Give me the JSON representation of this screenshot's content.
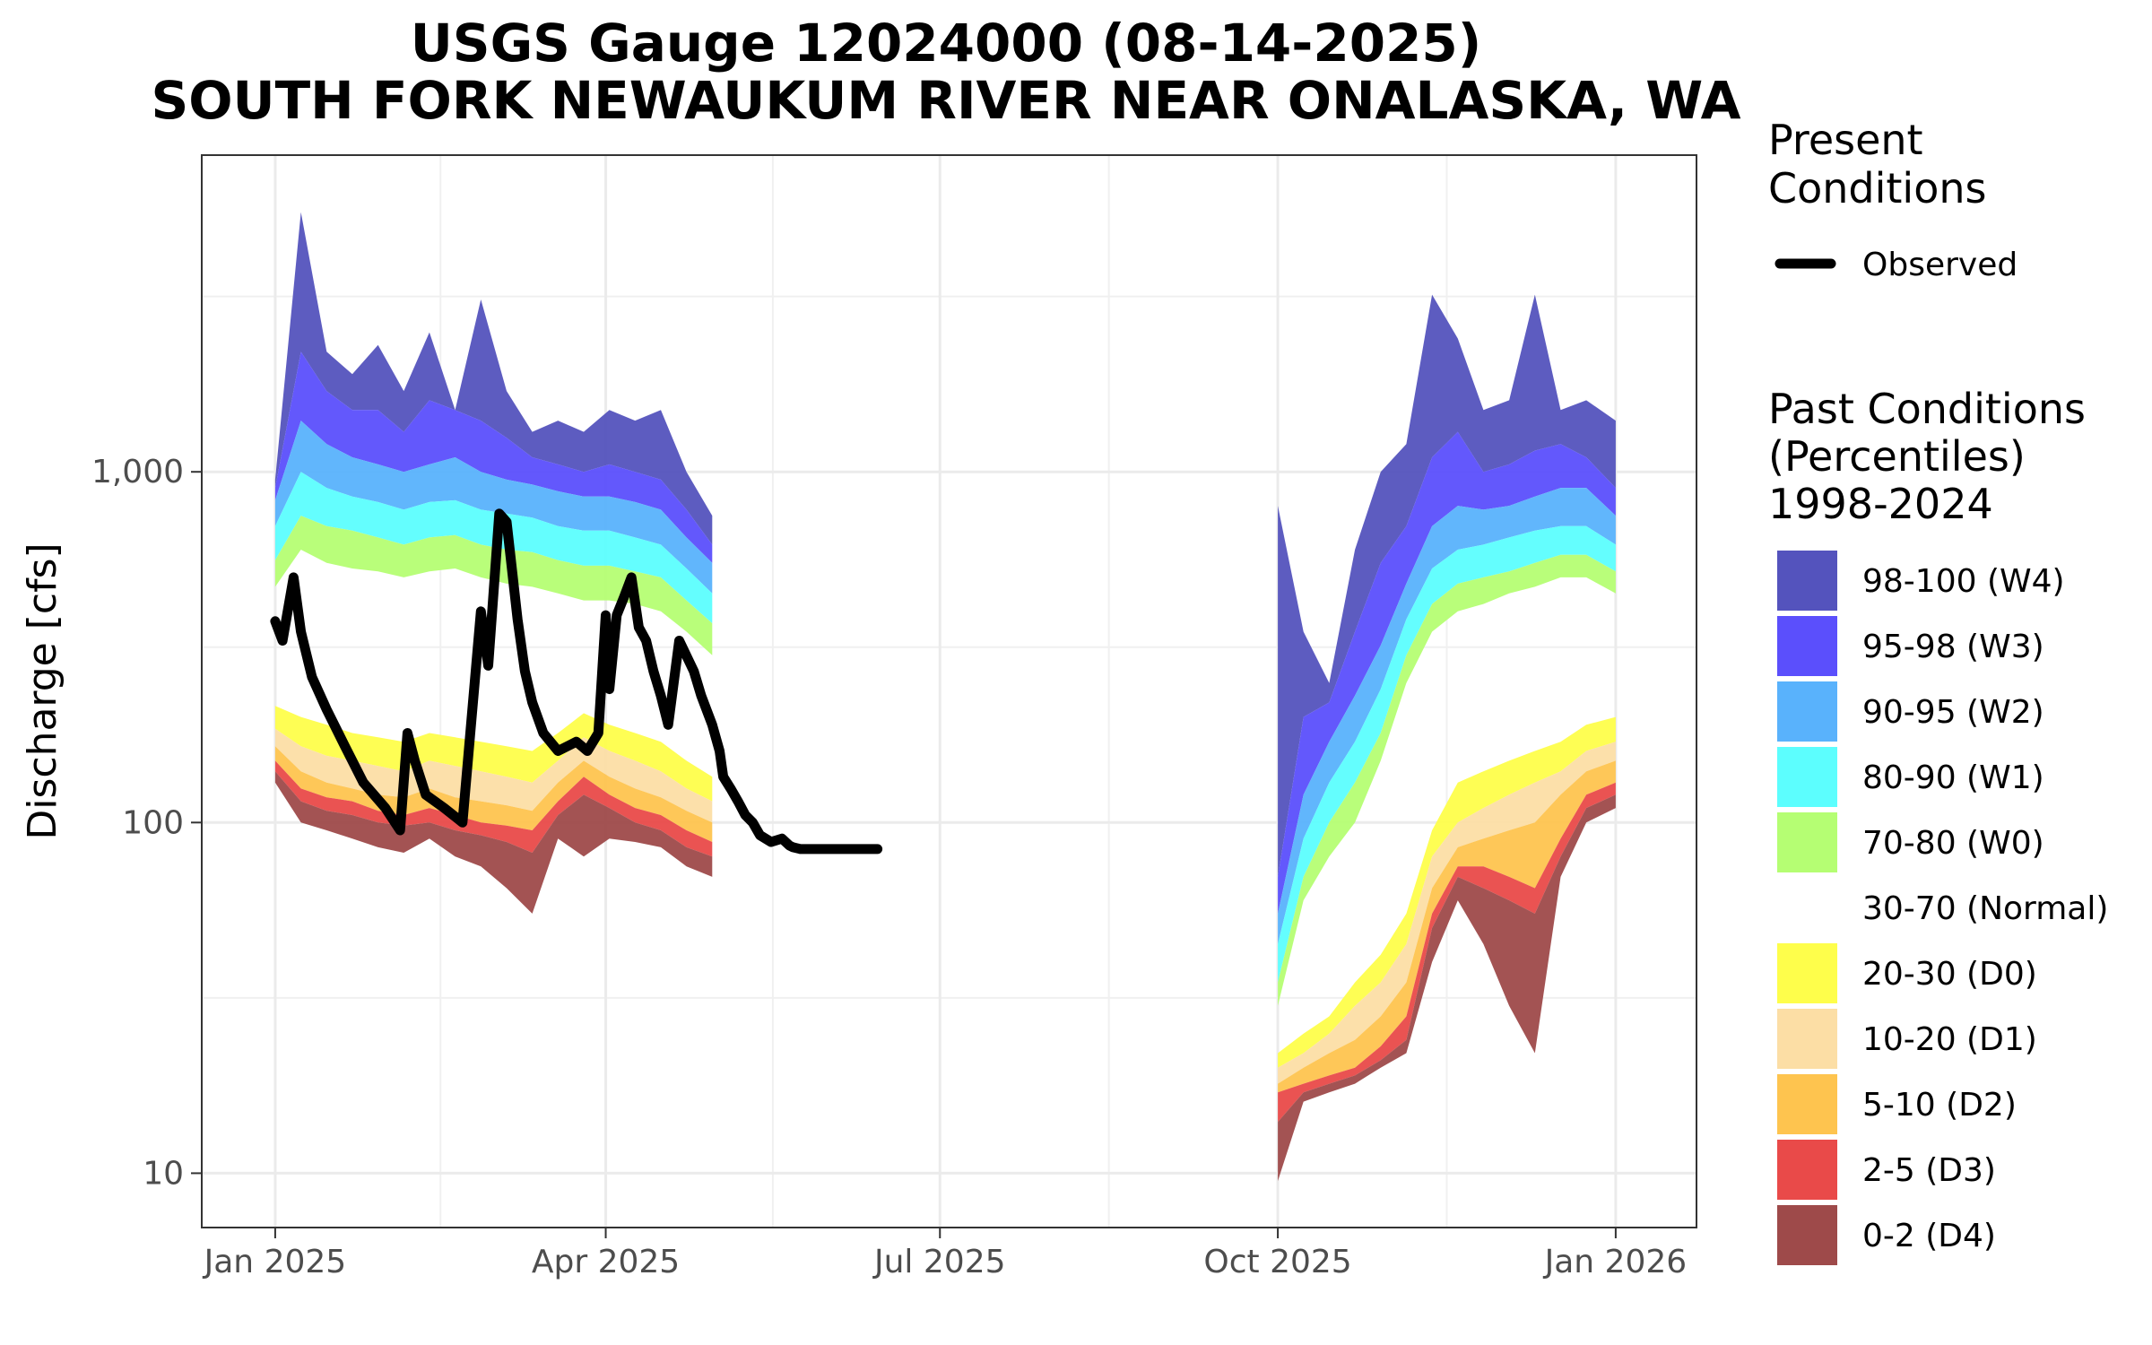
{
  "chart_data": {
    "type": "area",
    "title_lines": [
      "USGS Gauge 12024000 (08-14-2025)",
      "SOUTH FORK NEWAUKUM RIVER NEAR ONALASKA, WA"
    ],
    "xlabel": "",
    "ylabel": "Discharge [cfs]",
    "y_scale": "log",
    "ylim": [
      7,
      8000
    ],
    "xlim": [
      "2024-12-12",
      "2026-01-23"
    ],
    "y_ticks": [
      10,
      100,
      1000
    ],
    "y_tick_labels": [
      "10",
      "100",
      "1,000"
    ],
    "x_ticks": [
      "2025-01-01",
      "2025-04-01",
      "2025-07-01",
      "2025-10-01",
      "2026-01-01"
    ],
    "x_tick_labels": [
      "Jan 2025",
      "Apr 2025",
      "Jul 2025",
      "Oct 2025",
      "Jan 2026"
    ],
    "grid": true,
    "legend_position": "right",
    "present_legend": {
      "title_lines": [
        "Present",
        "Conditions"
      ],
      "entries": [
        {
          "label": "Observed",
          "color": "#000000"
        }
      ]
    },
    "past_legend": {
      "title_lines": [
        "Past Conditions",
        "(Percentiles)",
        "1998-2024"
      ],
      "entries": [
        {
          "label": "98-100 (W4)",
          "color": "#5453BD"
        },
        {
          "label": "95-98 (W3)",
          "color": "#5B4FFC"
        },
        {
          "label": "90-95 (W2)",
          "color": "#59B2FC"
        },
        {
          "label": "80-90 (W1)",
          "color": "#5CFEFE"
        },
        {
          "label": "70-80 (W0)",
          "color": "#B5FE73"
        },
        {
          "label": "30-70 (Normal)",
          "color": "#FFFFFF"
        },
        {
          "label": "20-30 (D0)",
          "color": "#FEFE4B"
        },
        {
          "label": "10-20 (D1)",
          "color": "#FCDEA5"
        },
        {
          "label": "5-10 (D2)",
          "color": "#FEC44F"
        },
        {
          "label": "2-5 (D3)",
          "color": "#E94A49"
        },
        {
          "label": "0-2 (D4)",
          "color": "#9E4A4A"
        }
      ]
    },
    "bands": [
      {
        "segment": "Jan-Apr 2025",
        "x": [
          "2025-01-01",
          "2025-01-08",
          "2025-01-15",
          "2025-01-22",
          "2025-01-29",
          "2025-02-05",
          "2025-02-12",
          "2025-02-19",
          "2025-02-26",
          "2025-03-05",
          "2025-03-12",
          "2025-03-19",
          "2025-03-26",
          "2025-04-02",
          "2025-04-09",
          "2025-04-16",
          "2025-04-23",
          "2025-04-30"
        ],
        "p0": [
          130,
          100,
          95,
          90,
          85,
          82,
          90,
          80,
          75,
          65,
          55,
          90,
          80,
          90,
          88,
          85,
          75,
          70
        ],
        "p2": [
          140,
          115,
          108,
          105,
          100,
          98,
          100,
          95,
          92,
          88,
          82,
          105,
          120,
          110,
          100,
          95,
          85,
          80
        ],
        "p5": [
          150,
          125,
          118,
          115,
          108,
          105,
          110,
          105,
          100,
          98,
          95,
          115,
          135,
          120,
          110,
          105,
          95,
          88
        ],
        "p10": [
          165,
          140,
          130,
          125,
          120,
          118,
          125,
          118,
          115,
          112,
          108,
          130,
          150,
          135,
          125,
          118,
          108,
          100
        ],
        "p20": [
          185,
          165,
          155,
          150,
          145,
          140,
          150,
          145,
          140,
          135,
          130,
          150,
          175,
          160,
          150,
          140,
          125,
          115
        ],
        "p30": [
          215,
          200,
          190,
          180,
          175,
          170,
          180,
          175,
          170,
          165,
          160,
          180,
          205,
          190,
          180,
          170,
          150,
          135
        ],
        "p70": [
          470,
          600,
          550,
          530,
          520,
          500,
          520,
          530,
          500,
          480,
          470,
          450,
          430,
          430,
          420,
          400,
          350,
          300
        ],
        "p80": [
          560,
          750,
          700,
          680,
          650,
          620,
          650,
          660,
          620,
          600,
          590,
          560,
          540,
          540,
          520,
          500,
          430,
          370
        ],
        "p90": [
          700,
          1000,
          900,
          850,
          820,
          780,
          820,
          830,
          780,
          760,
          740,
          700,
          680,
          680,
          650,
          620,
          530,
          450
        ],
        "p95": [
          830,
          1400,
          1200,
          1100,
          1050,
          1000,
          1050,
          1100,
          1000,
          950,
          920,
          880,
          850,
          850,
          820,
          780,
          650,
          550
        ],
        "p98": [
          900,
          2200,
          1700,
          1500,
          1500,
          1300,
          1600,
          1500,
          1400,
          1250,
          1100,
          1050,
          1000,
          1050,
          1000,
          950,
          780,
          620
        ],
        "p100": [
          950,
          5500,
          2200,
          1900,
          2300,
          1700,
          2500,
          1500,
          3100,
          1700,
          1300,
          1400,
          1300,
          1500,
          1400,
          1500,
          1000,
          750
        ]
      },
      {
        "segment": "Oct 2025-Jan 2026",
        "x": [
          "2025-10-01",
          "2025-10-08",
          "2025-10-15",
          "2025-10-22",
          "2025-10-29",
          "2025-11-05",
          "2025-11-12",
          "2025-11-19",
          "2025-11-26",
          "2025-12-03",
          "2025-12-10",
          "2025-12-17",
          "2025-12-24",
          "2026-01-01"
        ],
        "p0": [
          9.5,
          16,
          17,
          18,
          20,
          22,
          40,
          60,
          45,
          30,
          22,
          70,
          100,
          110
        ],
        "p2": [
          14,
          17,
          18,
          19,
          21,
          24,
          50,
          70,
          65,
          60,
          55,
          80,
          110,
          120
        ],
        "p5": [
          17,
          18,
          19,
          20,
          23,
          28,
          55,
          75,
          75,
          70,
          65,
          90,
          120,
          130
        ],
        "p10": [
          18,
          20,
          22,
          24,
          28,
          35,
          65,
          85,
          90,
          95,
          100,
          120,
          140,
          150
        ],
        "p20": [
          20,
          22,
          25,
          30,
          35,
          45,
          80,
          100,
          110,
          120,
          130,
          140,
          160,
          170
        ],
        "p30": [
          22,
          25,
          28,
          35,
          42,
          55,
          95,
          130,
          140,
          150,
          160,
          170,
          190,
          200
        ],
        "p70": [
          30,
          60,
          80,
          100,
          150,
          250,
          350,
          400,
          420,
          450,
          470,
          500,
          500,
          450
        ],
        "p80": [
          35,
          70,
          100,
          130,
          180,
          300,
          420,
          480,
          500,
          520,
          550,
          580,
          580,
          520
        ],
        "p90": [
          45,
          90,
          130,
          170,
          240,
          380,
          530,
          600,
          620,
          650,
          680,
          700,
          700,
          620
        ],
        "p95": [
          55,
          120,
          170,
          230,
          320,
          480,
          700,
          800,
          780,
          800,
          850,
          900,
          900,
          750
        ],
        "p98": [
          70,
          200,
          220,
          350,
          550,
          700,
          1100,
          1300,
          1000,
          1050,
          1150,
          1200,
          1100,
          900
        ],
        "p100": [
          800,
          350,
          250,
          600,
          1000,
          1200,
          3200,
          2400,
          1500,
          1600,
          3200,
          1500,
          1600,
          1400
        ]
      }
    ],
    "series": [
      {
        "name": "Observed",
        "color": "#000000",
        "x": [
          "2025-01-01",
          "2025-01-03",
          "2025-01-06",
          "2025-01-08",
          "2025-01-11",
          "2025-01-15",
          "2025-01-20",
          "2025-01-25",
          "2025-01-31",
          "2025-02-04",
          "2025-02-06",
          "2025-02-08",
          "2025-02-11",
          "2025-02-16",
          "2025-02-21",
          "2025-02-26",
          "2025-02-28",
          "2025-03-03",
          "2025-03-05",
          "2025-03-08",
          "2025-03-10",
          "2025-03-12",
          "2025-03-15",
          "2025-03-19",
          "2025-03-24",
          "2025-03-27",
          "2025-03-30",
          "2025-04-01",
          "2025-04-02",
          "2025-04-04",
          "2025-04-06",
          "2025-04-08",
          "2025-04-10",
          "2025-04-12",
          "2025-04-14",
          "2025-04-16",
          "2025-04-18",
          "2025-04-21",
          "2025-04-25",
          "2025-04-27",
          "2025-04-30",
          "2025-05-02",
          "2025-05-03",
          "2025-05-05",
          "2025-05-07",
          "2025-05-09",
          "2025-05-11",
          "2025-05-13",
          "2025-05-16",
          "2025-05-19",
          "2025-05-21",
          "2025-05-22",
          "2025-05-24",
          "2025-05-26",
          "2025-05-28",
          "2025-05-30",
          "2025-06-01",
          "2025-06-03",
          "2025-06-06",
          "2025-06-08",
          "2025-06-11",
          "2025-06-14"
        ],
        "y": [
          375,
          330,
          500,
          350,
          260,
          210,
          165,
          130,
          110,
          95,
          180,
          150,
          120,
          110,
          100,
          400,
          280,
          760,
          720,
          380,
          270,
          220,
          180,
          160,
          170,
          160,
          180,
          390,
          240,
          390,
          440,
          500,
          360,
          330,
          270,
          230,
          190,
          330,
          270,
          230,
          190,
          160,
          135,
          125,
          115,
          105,
          100,
          92,
          88,
          90,
          86,
          85,
          84,
          84,
          84,
          84,
          84,
          84,
          84,
          84,
          84,
          84
        ]
      }
    ]
  }
}
